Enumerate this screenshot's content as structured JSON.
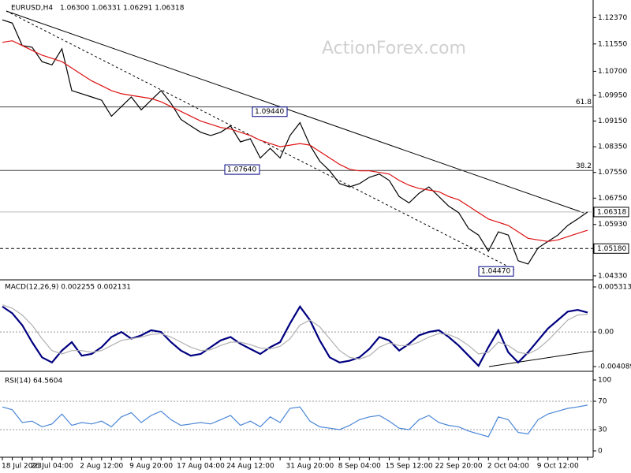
{
  "chart_data": [
    {
      "type": "line",
      "title": "EURUSD,H4",
      "subtitle": "1.06300 1.06331 1.06291 1.06318",
      "watermark": "ActionForex.com",
      "categories": [
        "18 Jul 2023",
        null,
        null,
        null,
        null,
        "26 Jul 04:00",
        null,
        null,
        null,
        null,
        "2 Aug 12:00",
        null,
        null,
        null,
        null,
        "9 Aug 20:00",
        null,
        null,
        null,
        null,
        "17 Aug 04:00",
        null,
        null,
        null,
        null,
        "24 Aug 12:00",
        null,
        null,
        null,
        null,
        null,
        "31 Aug 20:00",
        null,
        null,
        null,
        null,
        "8 Sep 04:00",
        null,
        null,
        null,
        null,
        "15 Sep 12:00",
        null,
        null,
        null,
        null,
        "22 Sep 20:00",
        null,
        null,
        null,
        null,
        "2 Oct 04:00",
        null,
        null,
        null,
        null,
        "9 Oct 12:00",
        null,
        null,
        null
      ],
      "series": [
        {
          "color": "#000000",
          "values": [
            1.123,
            1.122,
            1.115,
            1.1145,
            1.11,
            1.109,
            1.114,
            1.101,
            1.1,
            1.099,
            1.098,
            1.093,
            1.096,
            1.099,
            1.095,
            1.098,
            1.101,
            1.097,
            1.092,
            1.09,
            1.088,
            1.087,
            1.088,
            1.09,
            1.085,
            1.086,
            1.08,
            1.083,
            1.08,
            1.087,
            1.091,
            1.084,
            1.079,
            1.076,
            1.072,
            1.071,
            1.072,
            1.074,
            1.075,
            1.073,
            1.068,
            1.066,
            1.069,
            1.071,
            1.068,
            1.065,
            1.063,
            1.058,
            1.056,
            1.051,
            1.057,
            1.056,
            1.048,
            1.047,
            1.052,
            1.054,
            1.056,
            1.059,
            1.061,
            1.0632
          ]
        },
        {
          "color": "#dd1111",
          "values": [
            1.116,
            1.1165,
            1.115,
            1.1135,
            1.112,
            1.111,
            1.11,
            1.108,
            1.106,
            1.104,
            1.1025,
            1.101,
            1.1,
            1.0995,
            1.099,
            1.0985,
            1.0975,
            1.096,
            1.0945,
            1.093,
            1.0915,
            1.0905,
            1.0895,
            1.089,
            1.088,
            1.087,
            1.0855,
            1.0845,
            1.0835,
            1.084,
            1.0845,
            1.084,
            1.082,
            1.08,
            1.078,
            1.0765,
            1.076,
            1.076,
            1.0755,
            1.075,
            1.073,
            1.0715,
            1.0705,
            1.07,
            1.0695,
            1.068,
            1.067,
            1.065,
            1.063,
            1.061,
            1.06,
            1.059,
            1.057,
            1.055,
            1.0545,
            1.054,
            1.0545,
            1.0555,
            1.0565,
            1.0575
          ]
        }
      ],
      "ylim": [
        1.0423,
        1.1287
      ],
      "yticks": [
        {
          "value": 1.1237,
          "label": "1.12370"
        },
        {
          "value": 1.1155,
          "label": "1.11550"
        },
        {
          "value": 1.107,
          "label": "1.10700"
        },
        {
          "value": 1.0995,
          "label": "1.09950"
        },
        {
          "value": 1.0915,
          "label": "1.09150"
        },
        {
          "value": 1.0835,
          "label": "1.08350"
        },
        {
          "value": 1.0755,
          "label": "1.07550"
        },
        {
          "value": 1.0675,
          "label": "1.06750"
        },
        {
          "value": 1.0593,
          "label": "1.05930"
        },
        {
          "value": 1.0433,
          "label": "1.04330"
        }
      ],
      "fib_levels": [
        {
          "value": 1.0959,
          "label": "61.8"
        },
        {
          "value": 1.0761,
          "label": "38.2"
        }
      ],
      "price_labels": [
        {
          "value": 1.06318,
          "label": "1.06318"
        },
        {
          "value": 1.0518,
          "label": "1.05180"
        }
      ],
      "annotations": [
        {
          "value": 1.0944,
          "label": "1.09440"
        },
        {
          "value": 1.0764,
          "label": "1.07640"
        },
        {
          "value": 1.0447,
          "label": "1.04470"
        }
      ]
    },
    {
      "type": "line",
      "title": "MACD(12,26,9) 0.002255 0.002131",
      "series": [
        {
          "color": "#000080",
          "values": [
            0.003,
            0.0022,
            0.0008,
            -0.0012,
            -0.003,
            -0.0036,
            -0.0022,
            -0.0012,
            -0.0028,
            -0.0026,
            -0.0018,
            -0.0006,
            0.0,
            -0.0008,
            -0.0004,
            0.0002,
            0.0,
            -0.0012,
            -0.0022,
            -0.0028,
            -0.0026,
            -0.0018,
            -0.001,
            -0.0006,
            -0.0014,
            -0.002,
            -0.0026,
            -0.0018,
            -0.0012,
            0.001,
            0.003,
            0.0014,
            -0.001,
            -0.003,
            -0.0036,
            -0.0034,
            -0.003,
            -0.002,
            -0.0006,
            -0.001,
            -0.0022,
            -0.0014,
            -0.0004,
            0.0,
            0.0002,
            -0.0006,
            -0.0016,
            -0.0028,
            -0.004,
            -0.0018,
            0.0002,
            -0.0024,
            -0.0036,
            -0.0024,
            -0.001,
            0.0004,
            0.0014,
            0.0024,
            0.0026,
            0.0023
          ]
        },
        {
          "color": "#b0b0b0",
          "values": [
            0.0032,
            0.0028,
            0.002,
            0.0008,
            -0.0008,
            -0.0022,
            -0.0026,
            -0.0022,
            -0.0022,
            -0.0024,
            -0.0022,
            -0.0016,
            -0.001,
            -0.0008,
            -0.0006,
            -0.0003,
            -0.0002,
            -0.0006,
            -0.0012,
            -0.0018,
            -0.0022,
            -0.0021,
            -0.0016,
            -0.0012,
            -0.0012,
            -0.0015,
            -0.0019,
            -0.002,
            -0.0017,
            -0.0008,
            0.0008,
            0.0014,
            0.0006,
            -0.0008,
            -0.0022,
            -0.003,
            -0.0032,
            -0.0028,
            -0.0018,
            -0.0013,
            -0.0016,
            -0.0016,
            -0.0012,
            -0.0006,
            -0.0002,
            -0.0003,
            -0.0008,
            -0.0016,
            -0.0026,
            -0.0024,
            -0.0012,
            -0.0016,
            -0.0024,
            -0.0026,
            -0.002,
            -0.001,
            0.0002,
            0.0014,
            0.002,
            0.0021
          ]
        }
      ],
      "ylim": [
        -0.004554,
        0.005872
      ],
      "yticks": [
        0.005313,
        {
          "value": 0,
          "label": "0.00"
        },
        -0.004089
      ]
    },
    {
      "type": "line",
      "title": "RSI(14) 64.5604",
      "series": [
        {
          "color": "#4a86d6",
          "values": [
            62,
            58,
            40,
            42,
            34,
            38,
            52,
            36,
            40,
            38,
            42,
            34,
            48,
            54,
            40,
            50,
            56,
            44,
            36,
            38,
            40,
            38,
            44,
            50,
            36,
            42,
            34,
            48,
            40,
            60,
            62,
            42,
            34,
            32,
            30,
            36,
            44,
            48,
            50,
            42,
            32,
            30,
            44,
            50,
            40,
            36,
            34,
            28,
            24,
            20,
            48,
            44,
            26,
            24,
            44,
            52,
            56,
            60,
            62,
            64.5604
          ]
        }
      ],
      "ylim": [
        -6.7,
        108.9
      ],
      "yticks": [
        100,
        70,
        30,
        0
      ],
      "levels": [
        70,
        30
      ]
    }
  ]
}
